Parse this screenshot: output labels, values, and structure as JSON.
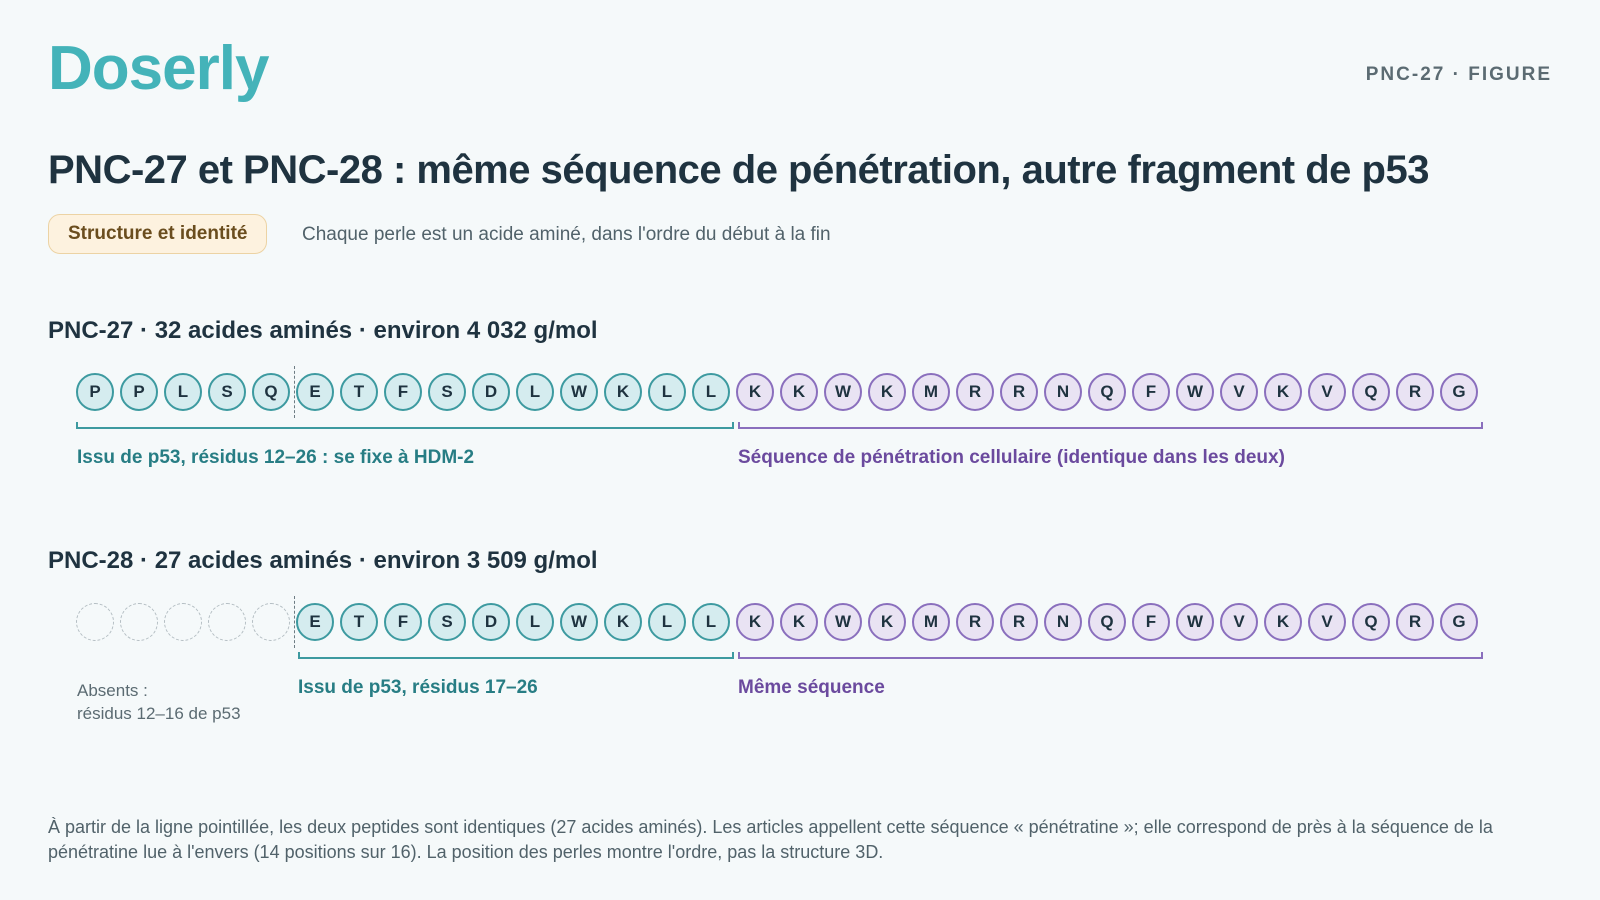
{
  "header": {
    "logo": "Doserly",
    "figure_tag": "PNC-27 · FIGURE"
  },
  "title": "PNC-27 et PNC-28 : même séquence de pénétration, autre fragment de p53",
  "pill": "Structure et identité",
  "subtitle": "Chaque perle est un acide aminé, dans l'ordre du début à la fin",
  "colors": {
    "teal_fill": "#d5ecef",
    "teal_stroke": "#3d9aa0",
    "purple_fill": "#e9e3f3",
    "purple_stroke": "#8a6fbd",
    "brand": "#44b3b9"
  },
  "pnc27": {
    "title": "PNC-27 · 32 acides aminés · environ 4 032 g/mol",
    "p53_residues": [
      "P",
      "P",
      "L",
      "S",
      "Q",
      "E",
      "T",
      "F",
      "S",
      "D",
      "L",
      "W",
      "K",
      "L",
      "L"
    ],
    "penetration_residues": [
      "K",
      "K",
      "W",
      "K",
      "M",
      "R",
      "R",
      "N",
      "Q",
      "F",
      "W",
      "V",
      "K",
      "V",
      "Q",
      "R",
      "G"
    ],
    "p53_label": "Issu de p53, résidus 12–26 : se fixe à HDM-2",
    "penetration_label": "Séquence de pénétration cellulaire (identique dans les deux)"
  },
  "pnc28": {
    "title": "PNC-28 · 27 acides aminés · environ 3 509 g/mol",
    "absent_count": 5,
    "p53_residues": [
      "E",
      "T",
      "F",
      "S",
      "D",
      "L",
      "W",
      "K",
      "L",
      "L"
    ],
    "penetration_residues": [
      "K",
      "K",
      "W",
      "K",
      "M",
      "R",
      "R",
      "N",
      "Q",
      "F",
      "W",
      "V",
      "K",
      "V",
      "Q",
      "R",
      "G"
    ],
    "absent_label_line1": "Absents :",
    "absent_label_line2": "résidus 12–16 de p53",
    "p53_label": "Issu de p53, résidus 17–26",
    "penetration_label": "Même séquence"
  },
  "footnote": "À partir de la ligne pointillée, les deux peptides sont identiques (27 acides aminés). Les articles appellent cette séquence « pénétratine »; elle correspond de près à la séquence de la pénétratine lue à l'envers (14 positions sur 16). La position des perles montre l'ordre, pas la structure 3D."
}
